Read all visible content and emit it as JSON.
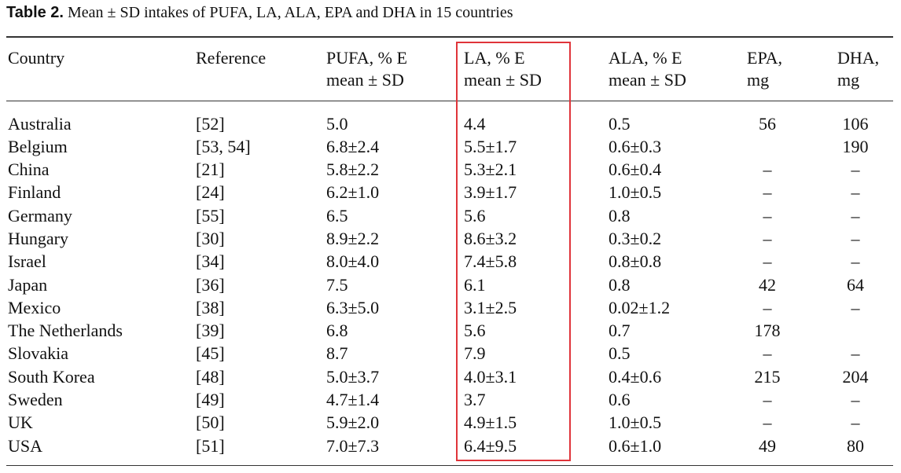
{
  "caption": {
    "label": "Table 2.",
    "text": "Mean ± SD intakes of PUFA, LA, ALA, EPA and DHA in 15 countries"
  },
  "headers": {
    "country": "Country",
    "reference": "Reference",
    "pufa_line1": "PUFA, % E",
    "pufa_line2": "mean ± SD",
    "la_line1": "LA, % E",
    "la_line2": "mean ± SD",
    "ala_line1": "ALA, % E",
    "ala_line2": "mean ± SD",
    "epa_line1": "EPA,",
    "epa_line2": "mg",
    "dha_line1": "DHA,",
    "dha_line2": "mg"
  },
  "rows": [
    {
      "country": "Australia",
      "reference": "[52]",
      "pufa": "5.0",
      "la": "4.4",
      "ala": "0.5",
      "epa": "56",
      "dha": "106"
    },
    {
      "country": "Belgium",
      "reference": "[53, 54]",
      "pufa": "6.8±2.4",
      "la": "5.5±1.7",
      "ala": "0.6±0.3",
      "epa": "",
      "dha": "190"
    },
    {
      "country": "China",
      "reference": "[21]",
      "pufa": "5.8±2.2",
      "la": "5.3±2.1",
      "ala": "0.6±0.4",
      "epa": "–",
      "dha": "–"
    },
    {
      "country": "Finland",
      "reference": "[24]",
      "pufa": "6.2±1.0",
      "la": "3.9±1.7",
      "ala": "1.0±0.5",
      "epa": "–",
      "dha": "–"
    },
    {
      "country": "Germany",
      "reference": "[55]",
      "pufa": "6.5",
      "la": "5.6",
      "ala": "0.8",
      "epa": "–",
      "dha": "–"
    },
    {
      "country": "Hungary",
      "reference": "[30]",
      "pufa": "8.9±2.2",
      "la": "8.6±3.2",
      "ala": "0.3±0.2",
      "epa": "–",
      "dha": "–"
    },
    {
      "country": "Israel",
      "reference": "[34]",
      "pufa": "8.0±4.0",
      "la": "7.4±5.8",
      "ala": "0.8±0.8",
      "epa": "–",
      "dha": "–"
    },
    {
      "country": "Japan",
      "reference": "[36]",
      "pufa": "7.5",
      "la": "6.1",
      "ala": "0.8",
      "epa": "42",
      "dha": "64"
    },
    {
      "country": "Mexico",
      "reference": "[38]",
      "pufa": "6.3±5.0",
      "la": "3.1±2.5",
      "ala": "0.02±1.2",
      "epa": "–",
      "dha": "–"
    },
    {
      "country": "The Netherlands",
      "reference": "[39]",
      "pufa": "6.8",
      "la": "5.6",
      "ala": "0.7",
      "epa": "178",
      "dha": ""
    },
    {
      "country": "Slovakia",
      "reference": "[45]",
      "pufa": "8.7",
      "la": "7.9",
      "ala": "0.5",
      "epa": "–",
      "dha": "–"
    },
    {
      "country": "South Korea",
      "reference": "[48]",
      "pufa": "5.0±3.7",
      "la": "4.0±3.1",
      "ala": "0.4±0.6",
      "epa": "215",
      "dha": "204"
    },
    {
      "country": "Sweden",
      "reference": "[49]",
      "pufa": "4.7±1.4",
      "la": "3.7",
      "ala": "0.6",
      "epa": "–",
      "dha": "–"
    },
    {
      "country": "UK",
      "reference": "[50]",
      "pufa": "5.9±2.0",
      "la": "4.9±1.5",
      "ala": "1.0±0.5",
      "epa": "–",
      "dha": "–"
    },
    {
      "country": "USA",
      "reference": "[51]",
      "pufa": "7.0±7.3",
      "la": "6.4±9.5",
      "ala": "0.6±1.0",
      "epa": "49",
      "dha": "80"
    }
  ],
  "highlight_color": "#e0343a"
}
